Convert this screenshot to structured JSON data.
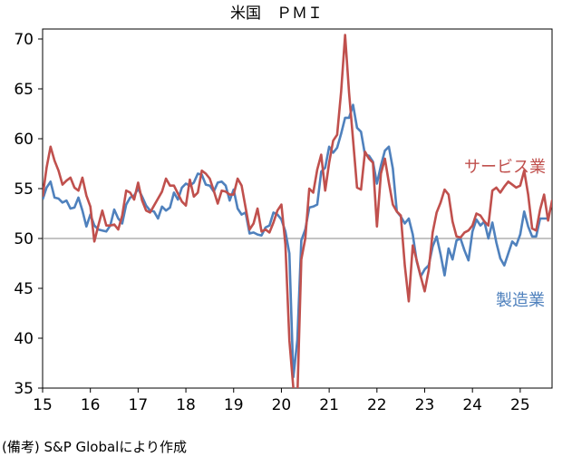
{
  "source_note": "(備考) S&P Globalにより作成",
  "chart_data": {
    "type": "line",
    "title": "米国　ＰＭＩ",
    "xlabel": "",
    "ylabel": "",
    "ylim": [
      35,
      71
    ],
    "yticks": [
      35,
      40,
      45,
      50,
      55,
      60,
      65,
      70
    ],
    "reference_line": 50,
    "x_start": 2015.0,
    "x_step_months": 1,
    "xlim": [
      2015.0,
      2025.6667
    ],
    "xticks": [
      {
        "value": 2015.0,
        "label": "15"
      },
      {
        "value": 2016.0,
        "label": "16"
      },
      {
        "value": 2017.0,
        "label": "17"
      },
      {
        "value": 2018.0,
        "label": "18"
      },
      {
        "value": 2019.0,
        "label": "19"
      },
      {
        "value": 2020.0,
        "label": "20"
      },
      {
        "value": 2021.0,
        "label": "21"
      },
      {
        "value": 2022.0,
        "label": "22"
      },
      {
        "value": 2023.0,
        "label": "23"
      },
      {
        "value": 2024.0,
        "label": "24"
      },
      {
        "value": 2025.0,
        "label": "25"
      }
    ],
    "grid": false,
    "series": [
      {
        "name": "サービス業",
        "color": "#c0504d",
        "values": [
          54.2,
          57.1,
          59.2,
          57.8,
          56.8,
          55.4,
          55.8,
          56.1,
          55.1,
          54.8,
          56.1,
          54.3,
          53.2,
          49.7,
          51.3,
          52.8,
          51.3,
          51.3,
          51.4,
          50.9,
          52.3,
          54.8,
          54.6,
          53.9,
          55.6,
          53.8,
          52.8,
          52.6,
          53.3,
          54.0,
          54.7,
          56.0,
          55.3,
          55.3,
          54.5,
          53.7,
          53.3,
          55.9,
          54.2,
          54.6,
          56.8,
          56.5,
          56.0,
          54.8,
          53.5,
          54.8,
          54.7,
          54.4,
          54.4,
          56.0,
          55.3,
          53.1,
          50.9,
          51.5,
          53.0,
          50.7,
          50.9,
          50.6,
          51.6,
          52.8,
          53.4,
          49.4,
          39.8,
          35.0,
          34.0,
          47.9,
          50.0,
          55.0,
          54.6,
          56.9,
          58.4,
          54.8,
          57.6,
          59.8,
          60.4,
          64.7,
          70.4,
          64.6,
          59.9,
          55.1,
          54.9,
          58.7,
          58.0,
          57.6,
          51.2,
          56.5,
          58.0,
          55.6,
          53.4,
          52.7,
          52.3,
          47.3,
          43.7,
          49.3,
          47.8,
          46.2,
          44.7,
          46.8,
          50.6,
          52.6,
          53.6,
          54.9,
          54.4,
          51.7,
          50.2,
          50.1,
          50.6,
          50.8,
          51.3,
          52.5,
          52.3,
          51.7,
          51.3,
          54.8,
          55.1,
          54.6,
          55.2,
          55.7,
          55.4,
          55.1,
          55.3,
          56.8,
          54.4,
          51.0,
          50.8,
          52.9,
          54.4,
          51.8,
          53.8,
          53.2
        ]
      },
      {
        "name": "製造業",
        "color": "#4f81bd",
        "values": [
          53.9,
          55.1,
          55.7,
          54.1,
          54.0,
          53.6,
          53.8,
          53.0,
          53.1,
          54.1,
          52.8,
          51.2,
          52.4,
          51.3,
          50.9,
          50.8,
          50.7,
          51.3,
          52.9,
          52.0,
          51.5,
          53.4,
          54.1,
          54.3,
          55.0,
          54.2,
          53.3,
          52.8,
          52.7,
          52.0,
          53.2,
          52.8,
          53.1,
          54.6,
          53.9,
          55.1,
          55.5,
          55.3,
          55.6,
          56.5,
          56.4,
          55.4,
          55.3,
          54.7,
          55.6,
          55.7,
          55.3,
          53.8,
          54.9,
          53.0,
          52.4,
          52.6,
          50.5,
          50.6,
          50.4,
          50.3,
          51.1,
          51.3,
          52.6,
          52.4,
          51.9,
          50.7,
          48.5,
          36.1,
          39.8,
          49.8,
          50.9,
          53.1,
          53.2,
          53.4,
          56.7,
          57.1,
          59.2,
          58.6,
          59.1,
          60.5,
          62.1,
          62.1,
          63.4,
          61.1,
          60.7,
          58.4,
          58.3,
          57.7,
          55.5,
          57.3,
          58.8,
          59.2,
          57.0,
          52.7,
          52.2,
          51.5,
          52.0,
          50.4,
          47.7,
          46.2,
          46.9,
          47.3,
          49.2,
          50.2,
          48.4,
          46.3,
          49.0,
          47.9,
          49.8,
          50.0,
          48.8,
          47.8,
          50.7,
          51.9,
          51.3,
          51.7,
          50.0,
          51.6,
          49.6,
          48.0,
          47.3,
          48.5,
          49.7,
          49.3,
          50.4,
          52.7,
          51.2,
          50.2,
          50.2,
          52.0,
          52.0,
          52.0
        ]
      }
    ],
    "annotations": [
      {
        "text": "サービス業",
        "series": 0
      },
      {
        "text": "製造業",
        "series": 1
      }
    ]
  }
}
